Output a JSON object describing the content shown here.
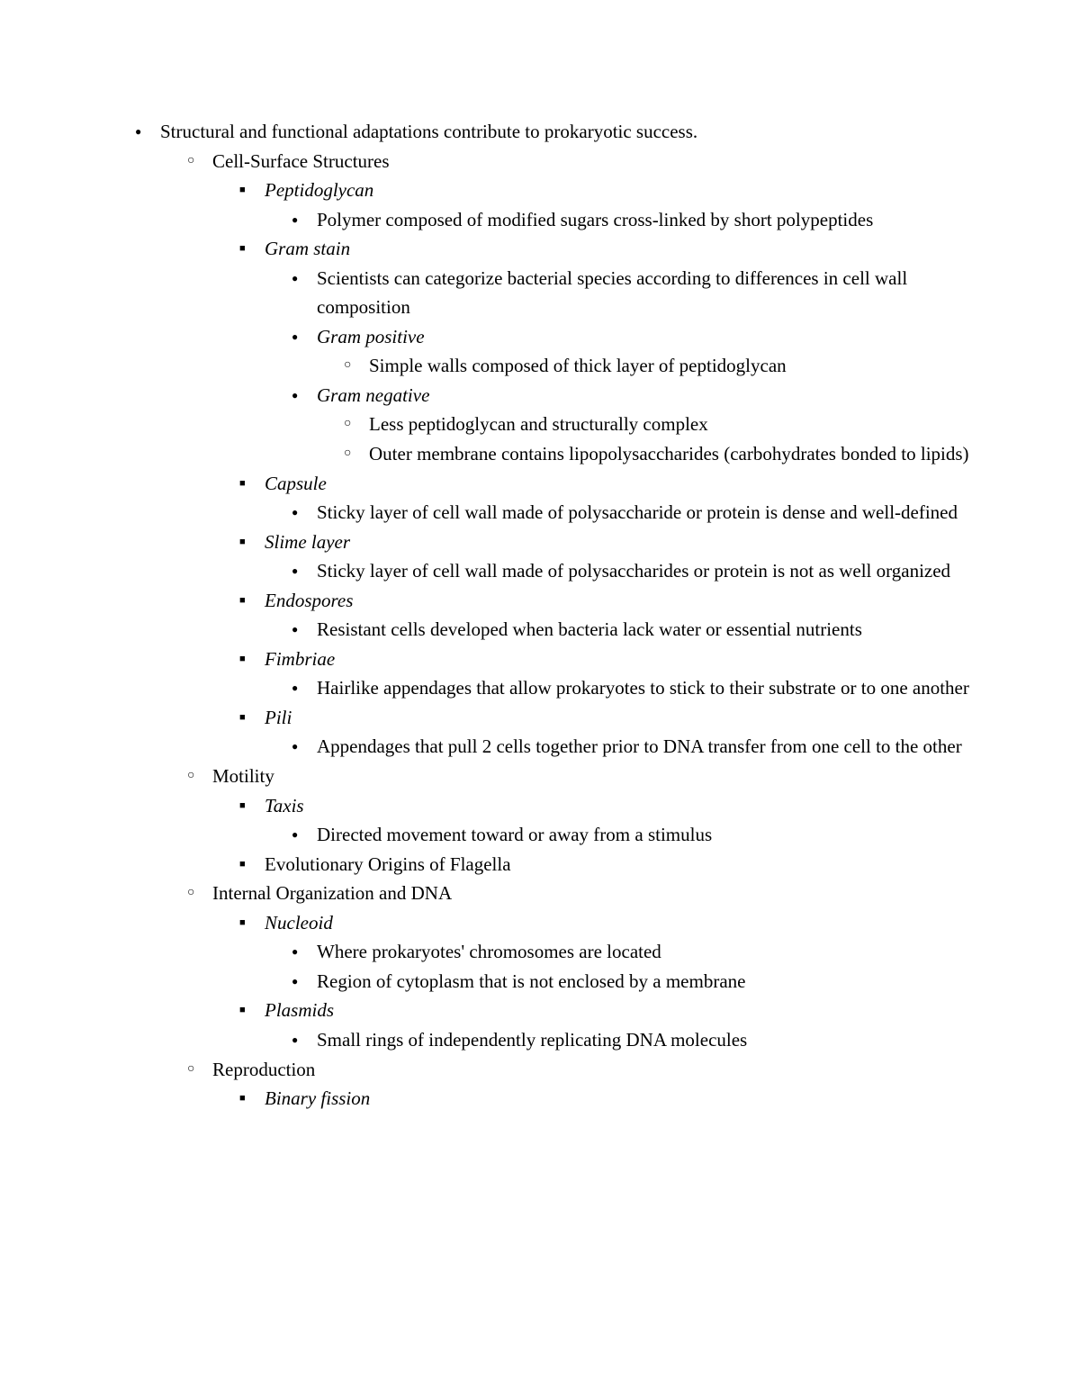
{
  "doc": {
    "top": "Structural and functional adaptations contribute to prokaryotic success.",
    "s1": {
      "title": "Cell-Surface Structures",
      "peptidoglycan": {
        "term": "Peptidoglycan",
        "def": "Polymer composed of modified sugars cross-linked by short polypeptides"
      },
      "gram": {
        "term": "Gram stain",
        "def": "Scientists can categorize bacterial species according to differences in cell wall composition",
        "pos": {
          "term": "Gram positive",
          "def": "Simple walls composed of thick layer of peptidoglycan"
        },
        "neg": {
          "term": "Gram negative",
          "def1": "Less peptidoglycan and structurally complex",
          "def2": "Outer membrane contains lipopolysaccharides (carbohydrates bonded to lipids)"
        }
      },
      "capsule": {
        "term": "Capsule",
        "def": "Sticky layer of cell wall made of polysaccharide or protein is dense and well-defined"
      },
      "slime": {
        "term": "Slime layer",
        "def": "Sticky layer of cell wall made of polysaccharides or protein is not as well organized"
      },
      "endo": {
        "term": "Endospores",
        "def": "Resistant cells developed when bacteria lack water or essential nutrients"
      },
      "fimbriae": {
        "term": "Fimbriae",
        "def": "Hairlike appendages that allow prokaryotes to stick to their substrate or to one another"
      },
      "pili": {
        "term": "Pili",
        "def": "Appendages that pull 2 cells together prior to DNA transfer from one cell to the other"
      }
    },
    "s2": {
      "title": "Motility",
      "taxis": {
        "term": "Taxis",
        "def": "Directed movement toward or away from a stimulus"
      },
      "flagella": "Evolutionary Origins of Flagella"
    },
    "s3": {
      "title": "Internal Organization and DNA",
      "nucleoid": {
        "term": "Nucleoid",
        "def1": "Where prokaryotes' chromosomes are located",
        "def2": "Region of cytoplasm that is not enclosed by a membrane"
      },
      "plasmids": {
        "term": "Plasmids",
        "def": "Small rings of independently replicating DNA molecules"
      }
    },
    "s4": {
      "title": "Reproduction",
      "binary": {
        "term": "Binary fission"
      }
    }
  }
}
